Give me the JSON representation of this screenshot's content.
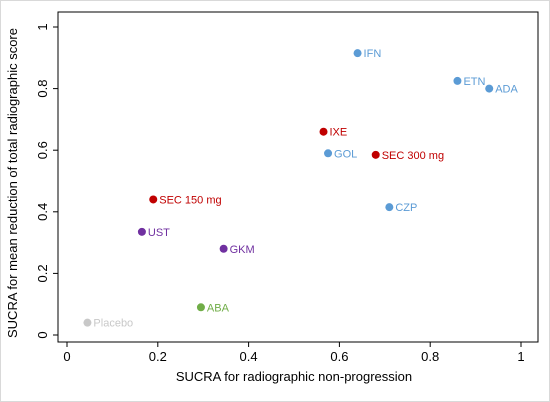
{
  "chart_data": {
    "type": "scatter",
    "xlabel": "SUCRA for radiographic non-progression",
    "ylabel": "SUCRA for mean reduction of total radiographic score",
    "xlim": [
      0,
      1
    ],
    "ylim": [
      0,
      1
    ],
    "xticks": [
      "0",
      "0.2",
      "0.4",
      "0.6",
      "0.8",
      "1"
    ],
    "yticks": [
      "0",
      "0.2",
      "0.4",
      "0.6",
      "0.8",
      "1"
    ],
    "grid": false,
    "points": [
      {
        "label": "IFN",
        "x": 0.64,
        "y": 0.915,
        "color": "#5b9bd5"
      },
      {
        "label": "ETN",
        "x": 0.86,
        "y": 0.825,
        "color": "#5b9bd5"
      },
      {
        "label": "ADA",
        "x": 0.93,
        "y": 0.8,
        "color": "#5b9bd5"
      },
      {
        "label": "IXE",
        "x": 0.565,
        "y": 0.66,
        "color": "#c00000"
      },
      {
        "label": "GOL",
        "x": 0.575,
        "y": 0.59,
        "color": "#5b9bd5"
      },
      {
        "label": "SEC 300 mg",
        "x": 0.68,
        "y": 0.585,
        "color": "#c00000"
      },
      {
        "label": "SEC 150 mg",
        "x": 0.19,
        "y": 0.44,
        "color": "#c00000"
      },
      {
        "label": "CZP",
        "x": 0.71,
        "y": 0.415,
        "color": "#5b9bd5"
      },
      {
        "label": "UST",
        "x": 0.165,
        "y": 0.335,
        "color": "#7030a0"
      },
      {
        "label": "GKM",
        "x": 0.345,
        "y": 0.28,
        "color": "#7030a0"
      },
      {
        "label": "ABA",
        "x": 0.295,
        "y": 0.09,
        "color": "#70ad47"
      },
      {
        "label": "Placebo",
        "x": 0.045,
        "y": 0.04,
        "color": "#c8c8c8"
      }
    ]
  }
}
